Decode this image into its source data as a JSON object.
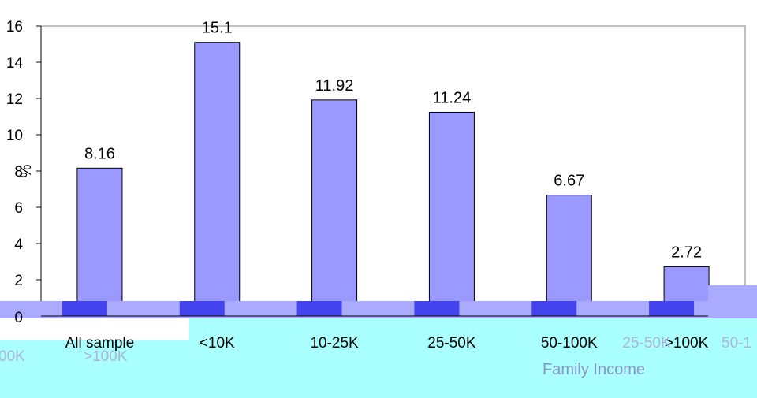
{
  "chart_data": {
    "type": "bar",
    "categories": [
      "All sample",
      "<10K",
      "10-25K",
      "25-50K",
      "50-100K",
      ">100K"
    ],
    "values": [
      8.16,
      15.1,
      11.92,
      11.24,
      6.67,
      2.72
    ],
    "data_labels": [
      "8.16",
      "15.1",
      "11.92",
      "11.24",
      "6.67",
      "2.72"
    ],
    "ylim": [
      0,
      16
    ],
    "yticks": [
      "0",
      "2",
      "4",
      "6",
      "8",
      "10",
      "12",
      "14",
      "16"
    ],
    "ylabel": "%",
    "xlabel": "Family Income",
    "bar_color": "#9999ff",
    "band_color": "#aaaaff",
    "accent_color": "#4444ee",
    "artifact_color": "#aaffff",
    "artifact_text": [
      "25-50K",
      "50-1",
      "00K",
      ">100K"
    ],
    "grid": false,
    "legend": "none"
  }
}
